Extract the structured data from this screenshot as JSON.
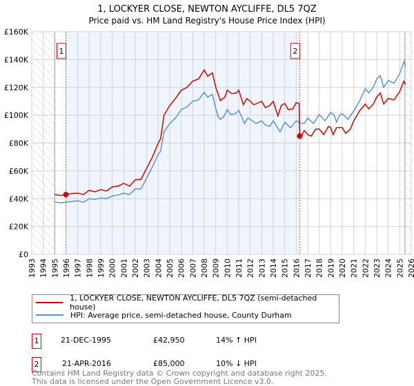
{
  "chart_data": {
    "type": "line",
    "title": "1, LOCKYER CLOSE, NEWTON AYCLIFFE, DL5 7QZ",
    "subtitle": "Price paid vs. HM Land Registry's House Price Index (HPI)",
    "xlim": [
      1993,
      2026
    ],
    "ylim": [
      0,
      160000
    ],
    "x_ticks": [
      "1993",
      "1994",
      "1995",
      "1996",
      "1997",
      "1998",
      "1999",
      "2000",
      "2001",
      "2002",
      "2003",
      "2004",
      "2005",
      "2006",
      "2007",
      "2008",
      "2009",
      "2010",
      "2011",
      "2012",
      "2013",
      "2014",
      "2015",
      "2016",
      "2017",
      "2018",
      "2019",
      "2020",
      "2021",
      "2022",
      "2023",
      "2024",
      "2025",
      "2026"
    ],
    "y_ticks": [
      {
        "v": 0,
        "label": "£0"
      },
      {
        "v": 20000,
        "label": "£20K"
      },
      {
        "v": 40000,
        "label": "£40K"
      },
      {
        "v": 60000,
        "label": "£60K"
      },
      {
        "v": 80000,
        "label": "£80K"
      },
      {
        "v": 100000,
        "label": "£100K"
      },
      {
        "v": 120000,
        "label": "£120K"
      },
      {
        "v": 140000,
        "label": "£140K"
      },
      {
        "v": 160000,
        "label": "£160K"
      }
    ],
    "grid": true,
    "hatched_ranges": [
      [
        1993,
        1995
      ],
      [
        2025.45,
        2026
      ]
    ],
    "shaded_range": [
      1995.97,
      2016.3
    ],
    "series": [
      {
        "name": "1, LOCKYER CLOSE, NEWTON AYCLIFFE, DL5 7QZ (semi-detached house)",
        "color": "#cc0000",
        "points": [
          [
            1995,
            43
          ],
          [
            1995.5,
            42.3
          ],
          [
            1996,
            42.9
          ],
          [
            1996.5,
            43.8
          ],
          [
            1997,
            44
          ],
          [
            1997.5,
            43
          ],
          [
            1998,
            46
          ],
          [
            1998.5,
            45
          ],
          [
            1999,
            46.5
          ],
          [
            1999.5,
            45.5
          ],
          [
            2000,
            48.5
          ],
          [
            2000.5,
            49
          ],
          [
            2001,
            51
          ],
          [
            2001.5,
            49
          ],
          [
            2002,
            53.5
          ],
          [
            2002.5,
            54
          ],
          [
            2003,
            62
          ],
          [
            2003.5,
            70
          ],
          [
            2004,
            80
          ],
          [
            2004.2,
            83
          ],
          [
            2004.5,
            100
          ],
          [
            2005,
            107
          ],
          [
            2005.5,
            112
          ],
          [
            2006,
            118
          ],
          [
            2006.5,
            120
          ],
          [
            2007,
            124.5
          ],
          [
            2007.5,
            126
          ],
          [
            2008,
            132.5
          ],
          [
            2008.3,
            128
          ],
          [
            2008.7,
            130.5
          ],
          [
            2009,
            120
          ],
          [
            2009.4,
            110.5
          ],
          [
            2009.8,
            113
          ],
          [
            2010,
            118
          ],
          [
            2010.4,
            115.5
          ],
          [
            2010.8,
            116
          ],
          [
            2011,
            118
          ],
          [
            2011.4,
            107.5
          ],
          [
            2011.7,
            112
          ],
          [
            2012,
            110
          ],
          [
            2012.3,
            107.5
          ],
          [
            2012.7,
            109
          ],
          [
            2013,
            110
          ],
          [
            2013.3,
            105.5
          ],
          [
            2013.7,
            107
          ],
          [
            2014,
            110
          ],
          [
            2014.4,
            99.5
          ],
          [
            2014.7,
            107
          ],
          [
            2015,
            108.5
          ],
          [
            2015.3,
            104
          ],
          [
            2015.7,
            104.5
          ],
          [
            2016,
            109
          ],
          [
            2016.25,
            108.5
          ],
          [
            2016.3,
            85
          ],
          [
            2016.5,
            86
          ],
          [
            2016.7,
            89
          ],
          [
            2017,
            86
          ],
          [
            2017.3,
            85
          ],
          [
            2017.7,
            90
          ],
          [
            2018,
            90
          ],
          [
            2018.4,
            86
          ],
          [
            2018.8,
            92
          ],
          [
            2019,
            91
          ],
          [
            2019.2,
            86
          ],
          [
            2019.5,
            91
          ],
          [
            2020,
            91
          ],
          [
            2020.3,
            87
          ],
          [
            2020.7,
            90
          ],
          [
            2021,
            96
          ],
          [
            2021.5,
            103
          ],
          [
            2022,
            108
          ],
          [
            2022.3,
            104.5
          ],
          [
            2022.7,
            108
          ],
          [
            2023,
            113
          ],
          [
            2023.3,
            116
          ],
          [
            2023.6,
            108
          ],
          [
            2024,
            112
          ],
          [
            2024.5,
            111
          ],
          [
            2025,
            117
          ],
          [
            2025.35,
            124.5
          ],
          [
            2025.5,
            122
          ]
        ]
      },
      {
        "name": "HPI: Average price, semi-detached house, County Durham",
        "color": "#5b8fd4",
        "points": [
          [
            1995,
            37.8
          ],
          [
            1995.5,
            37
          ],
          [
            1996,
            37.5
          ],
          [
            1996.5,
            38
          ],
          [
            1997,
            38.5
          ],
          [
            1997.5,
            37.5
          ],
          [
            1998,
            40
          ],
          [
            1998.5,
            39.5
          ],
          [
            1999,
            40.5
          ],
          [
            1999.5,
            40
          ],
          [
            2000,
            42
          ],
          [
            2000.5,
            42.5
          ],
          [
            2001,
            44
          ],
          [
            2001.5,
            43
          ],
          [
            2002,
            47
          ],
          [
            2002.5,
            47
          ],
          [
            2003,
            55
          ],
          [
            2003.5,
            63
          ],
          [
            2004,
            72
          ],
          [
            2004.2,
            74
          ],
          [
            2004.5,
            88
          ],
          [
            2005,
            94
          ],
          [
            2005.5,
            98
          ],
          [
            2006,
            104
          ],
          [
            2006.5,
            106
          ],
          [
            2007,
            110
          ],
          [
            2007.5,
            111
          ],
          [
            2008,
            116.5
          ],
          [
            2008.3,
            113
          ],
          [
            2008.7,
            115
          ],
          [
            2009,
            105
          ],
          [
            2009.2,
            99
          ],
          [
            2009.4,
            97
          ],
          [
            2009.7,
            99
          ],
          [
            2010,
            104
          ],
          [
            2010.3,
            100.5
          ],
          [
            2010.7,
            101
          ],
          [
            2011,
            103.5
          ],
          [
            2011.3,
            98
          ],
          [
            2011.5,
            94
          ],
          [
            2011.8,
            98
          ],
          [
            2012,
            97
          ],
          [
            2012.5,
            94
          ],
          [
            2013,
            96
          ],
          [
            2013.3,
            93
          ],
          [
            2013.7,
            92
          ],
          [
            2014,
            96
          ],
          [
            2014.3,
            92
          ],
          [
            2014.6,
            88
          ],
          [
            2015,
            95
          ],
          [
            2015.5,
            91
          ],
          [
            2016,
            96
          ],
          [
            2016.3,
            94.5
          ],
          [
            2016.7,
            94
          ],
          [
            2017,
            98
          ],
          [
            2017.5,
            94
          ],
          [
            2018,
            100.5
          ],
          [
            2018.5,
            96
          ],
          [
            2019,
            102
          ],
          [
            2019.3,
            100
          ],
          [
            2019.5,
            95
          ],
          [
            2019.8,
            100.5
          ],
          [
            2020,
            101
          ],
          [
            2020.5,
            97
          ],
          [
            2021,
            103
          ],
          [
            2021.5,
            110
          ],
          [
            2022,
            119
          ],
          [
            2022.3,
            116
          ],
          [
            2022.7,
            120
          ],
          [
            2023,
            126
          ],
          [
            2023.3,
            128.5
          ],
          [
            2023.6,
            120
          ],
          [
            2024,
            125
          ],
          [
            2024.5,
            123
          ],
          [
            2025,
            130
          ],
          [
            2025.4,
            139
          ],
          [
            2025.5,
            135
          ]
        ]
      }
    ],
    "annotations": [
      {
        "label": "1",
        "x": 1995.97,
        "y": 42950
      },
      {
        "label": "2",
        "x": 2016.3,
        "y": 85000
      }
    ],
    "legend_placement": "below"
  },
  "transactions": [
    {
      "num": "1",
      "date": "21-DEC-1995",
      "price": "£42,950",
      "hpi": "14% ↑ HPI"
    },
    {
      "num": "2",
      "date": "21-APR-2016",
      "price": "£85,000",
      "hpi": "10% ↓ HPI"
    }
  ],
  "footer": {
    "line1": "Contains HM Land Registry data © Crown copyright and database right 2025.",
    "line2": "This data is licensed under the Open Government Licence v3.0."
  }
}
